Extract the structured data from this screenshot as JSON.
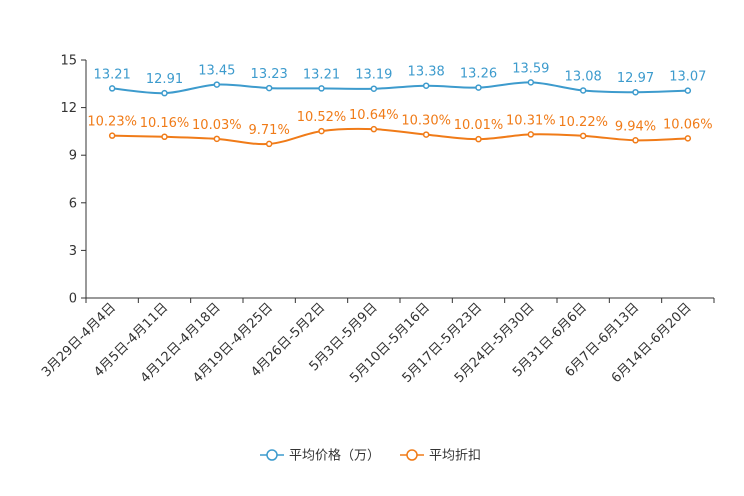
{
  "chart_data": {
    "type": "line",
    "title": "",
    "xlabel": "",
    "ylabel": "",
    "ylim": [
      0,
      15
    ],
    "yticks": [
      0,
      3,
      6,
      9,
      12,
      15
    ],
    "categories": [
      "3月29日-4月4日",
      "4月5日-4月11日",
      "4月12日-4月18日",
      "4月19日-4月25日",
      "4月26日-5月2日",
      "5月3日-5月9日",
      "5月10日-5月16日",
      "5月17日-5月23日",
      "5月24日-5月30日",
      "5月31日-6月6日",
      "6月7日-6月13日",
      "6月14日-6月20日"
    ],
    "series": [
      {
        "name": "平均价格（万）",
        "color": "#3d9bcd",
        "values": [
          13.21,
          12.91,
          13.45,
          13.23,
          13.21,
          13.19,
          13.38,
          13.26,
          13.59,
          13.08,
          12.97,
          13.07
        ],
        "labels": [
          "13.21",
          "12.91",
          "13.45",
          "13.23",
          "13.21",
          "13.19",
          "13.38",
          "13.26",
          "13.59",
          "13.08",
          "12.97",
          "13.07"
        ]
      },
      {
        "name": "平均折扣",
        "color": "#f07b18",
        "values": [
          10.23,
          10.16,
          10.03,
          9.71,
          10.52,
          10.64,
          10.3,
          10.01,
          10.31,
          10.22,
          9.94,
          10.06
        ],
        "labels": [
          "10.23%",
          "10.16%",
          "10.03%",
          "9.71%",
          "10.52%",
          "10.64%",
          "10.30%",
          "10.01%",
          "10.31%",
          "10.22%",
          "9.94%",
          "10.06%"
        ]
      }
    ],
    "legend": {
      "position": "bottom-center",
      "items": [
        "平均价格（万）",
        "平均折扣"
      ]
    }
  }
}
